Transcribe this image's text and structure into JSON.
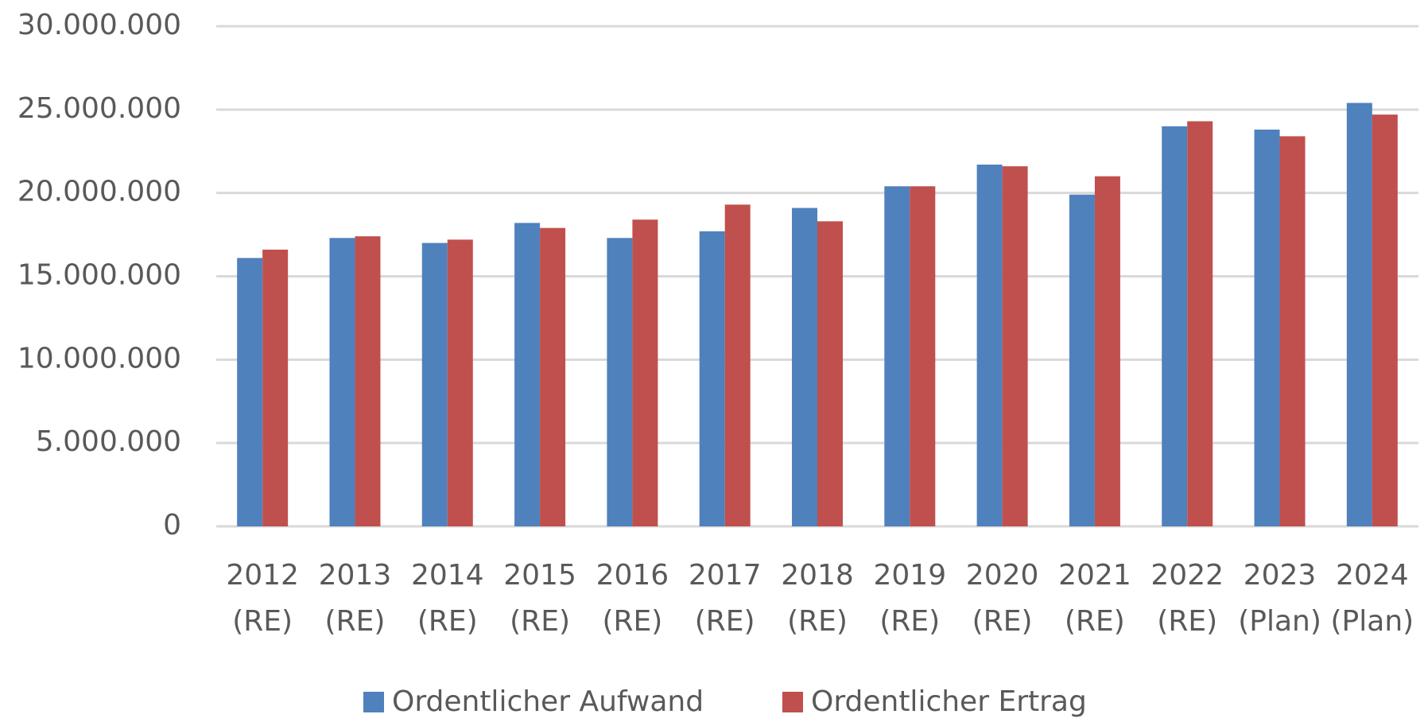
{
  "chart_data": {
    "type": "bar",
    "categories": [
      "2012 (RE)",
      "2013 (RE)",
      "2014 (RE)",
      "2015 (RE)",
      "2016 (RE)",
      "2017 (RE)",
      "2018 (RE)",
      "2019 (RE)",
      "2020 (RE)",
      "2021 (RE)",
      "2022 (RE)",
      "2023 (Plan)",
      "2024 (Plan)"
    ],
    "series": [
      {
        "name": "Ordentlicher Aufwand",
        "color": "#4f81bd",
        "values": [
          16100000,
          17300000,
          17000000,
          18200000,
          17300000,
          17700000,
          19100000,
          20400000,
          21700000,
          19900000,
          24000000,
          23800000,
          25400000
        ]
      },
      {
        "name": "Ordentlicher Ertrag",
        "color": "#c0504d",
        "values": [
          16600000,
          17400000,
          17200000,
          17900000,
          18400000,
          19300000,
          18300000,
          20400000,
          21600000,
          21000000,
          24300000,
          23400000,
          24700000
        ]
      }
    ],
    "ylim": [
      0,
      30000000
    ],
    "yticks": [
      0,
      {
        "value": 5000000,
        "label": "5.000.000"
      },
      {
        "value": 10000000,
        "label": "10.000.000"
      },
      {
        "value": 15000000,
        "label": "15.000.000"
      },
      {
        "value": 20000000,
        "label": "20.000.000"
      },
      {
        "value": 25000000,
        "label": "25.000.000"
      },
      {
        "value": 30000000,
        "label": "30.000.000"
      }
    ],
    "grid": true,
    "legend": "bottom"
  }
}
